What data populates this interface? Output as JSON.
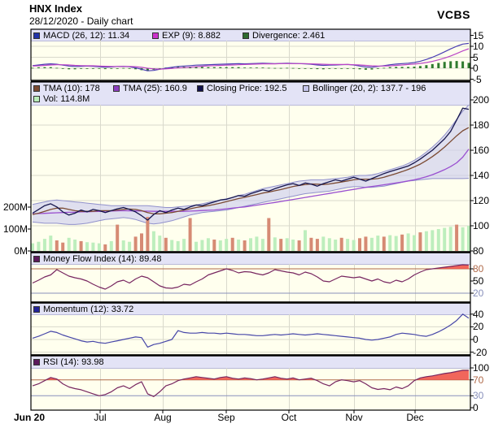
{
  "header": {
    "title": "HNX Index",
    "subtitle": "28/12/2020 - Daily chart",
    "brand": "VCBS"
  },
  "colors": {
    "panel_bg": "#ffffee",
    "strip_bg": "#e3e3f6",
    "strip_edge": "#b9b9d9",
    "grid": "#d9d9cc",
    "border": "#000000",
    "close": "#16164e",
    "tma10": "#7b4a32",
    "tma25": "#9a4fd0",
    "boll_fill": "#c9c9ee",
    "boll_edge": "#9090cc",
    "vol_up": "#bdeebd",
    "vol_down": "#d68a74",
    "macd": "#4b3fb4",
    "exp": "#bb46c6",
    "divergence": "#2f7b2f",
    "mfi": "#772660",
    "momentum": "#4646a8",
    "rsi": "#772660",
    "overbought": "#b06a4a",
    "oversold": "#8890bb",
    "fill_red": "#f0554a"
  },
  "chart_data": {
    "type": "line",
    "title": "HNX Index",
    "x_range": "Jun 2020 - Dec 2020 (daily)",
    "x_axis": {
      "labels": [
        "Jun 20",
        "Jul",
        "Aug",
        "Sep",
        "Oct",
        "Nov",
        "Dec"
      ]
    },
    "panels": {
      "macd": {
        "legend": [
          {
            "label": "MACD (26, 12): 11.34",
            "swatch": "#2233aa"
          },
          {
            "label": "EXP (9): 8.882",
            "swatch": "#cc33cc"
          },
          {
            "label": "Divergence: 2.461",
            "swatch": "#2f6b2f"
          }
        ],
        "yticks": [
          {
            "t": "15",
            "v": 15
          },
          {
            "t": "10",
            "v": 10
          },
          {
            "t": "5",
            "v": 5
          },
          {
            "t": "0",
            "v": 0
          },
          {
            "t": "-5",
            "v": -5
          }
        ]
      },
      "main": {
        "legend_row1": [
          {
            "label": "TMA (10): 178",
            "swatch": "#7b4a32"
          },
          {
            "label": "TMA (25): 160.9",
            "swatch": "#8d3fc0"
          },
          {
            "label": "Closing Price: 192.5",
            "swatch": "#10104a"
          },
          {
            "label": "Bollinger (20, 2): 137.7 - 196",
            "swatch": "#c3c3ea"
          }
        ],
        "legend_row2": [
          {
            "label": "Vol: 114.8M",
            "swatch": "#b9ecb9"
          }
        ],
        "ylim": [
          80,
          200
        ],
        "yticks_right": [
          {
            "t": "200",
            "v": 200
          },
          {
            "t": "180",
            "v": 180
          },
          {
            "t": "160",
            "v": 160
          },
          {
            "t": "140",
            "v": 140
          },
          {
            "t": "120",
            "v": 120
          },
          {
            "t": "100",
            "v": 100
          },
          {
            "t": "80",
            "v": 80
          }
        ],
        "yticks_left": [
          {
            "t": "200M",
            "v": 200
          },
          {
            "t": "100M",
            "v": 100
          },
          {
            "t": "0M",
            "v": 0
          }
        ]
      },
      "mfi": {
        "legend": [
          {
            "label": "Money Flow Index (14): 89.48",
            "swatch": "#5c1a5c"
          }
        ],
        "yticks": [
          {
            "t": "80",
            "v": 80,
            "c": "#b06a4a"
          },
          {
            "t": "50",
            "v": 50
          },
          {
            "t": "20",
            "v": 20,
            "c": "#8890bb"
          }
        ],
        "ref_high": 80,
        "ref_low": 20
      },
      "momentum": {
        "legend": [
          {
            "label": "Momentum (12): 33.72",
            "swatch": "#22229a"
          }
        ],
        "yticks": [
          {
            "t": "40",
            "v": 40
          },
          {
            "t": "20",
            "v": 20
          },
          {
            "t": "0",
            "v": 0
          },
          {
            "t": "-20",
            "v": -20
          }
        ]
      },
      "rsi": {
        "legend": [
          {
            "label": "RSI (14): 93.98",
            "swatch": "#5c1a5c"
          }
        ],
        "yticks": [
          {
            "t": "100",
            "v": 100
          },
          {
            "t": "70",
            "v": 70,
            "c": "#b06a4a"
          },
          {
            "t": "30",
            "v": 30,
            "c": "#8890bb"
          },
          {
            "t": "0",
            "v": 0
          }
        ],
        "ref_high": 70,
        "ref_low": 30
      }
    },
    "series": {
      "close": [
        110,
        113,
        116,
        117.5,
        115,
        111,
        108.5,
        110,
        112.5,
        111,
        113,
        112,
        110.5,
        112,
        113.5,
        114.5,
        113,
        111,
        108,
        104.5,
        109,
        112,
        110.5,
        112.5,
        114,
        113,
        115,
        116.5,
        116,
        117.5,
        119,
        120.5,
        121,
        122.5,
        124,
        123.5,
        125.5,
        127,
        128.5,
        127.5,
        129.5,
        131,
        132.5,
        133.5,
        132,
        134,
        133,
        131.5,
        133.5,
        135,
        136.5,
        135.5,
        137,
        138.5,
        137,
        135.5,
        137.5,
        139.5,
        141.5,
        143,
        144.5,
        146,
        147.5,
        150,
        153,
        156.5,
        160,
        164.5,
        169,
        175,
        184,
        193.5,
        192.5
      ],
      "tma10": [
        109,
        110,
        111.5,
        113,
        114,
        114,
        113,
        112,
        111.5,
        111.5,
        111.5,
        112,
        112,
        112,
        112.5,
        113,
        113.3,
        113,
        112,
        110.5,
        109.5,
        109.5,
        110,
        110.5,
        111.5,
        112.5,
        113.5,
        114.5,
        115.3,
        116,
        117,
        118,
        119.2,
        120.4,
        121.6,
        122.6,
        123.7,
        124.8,
        126,
        126.8,
        127.8,
        128.8,
        130,
        131.2,
        132,
        132.8,
        133.2,
        133,
        132.8,
        133.2,
        134,
        134.8,
        135.6,
        136.5,
        137,
        137,
        137,
        137.5,
        138.5,
        140,
        141.5,
        143,
        144.8,
        146.8,
        149,
        151.8,
        155,
        158.5,
        162.5,
        167,
        171.5,
        175.5,
        178
      ],
      "tma25": [
        109.5,
        109.7,
        109.9,
        110.1,
        110.3,
        110.5,
        110.7,
        110.8,
        111,
        111.1,
        111.3,
        111.4,
        111.6,
        111.7,
        111.9,
        112,
        111.9,
        111.8,
        111.7,
        111.6,
        111.5,
        111.5,
        111.5,
        111.5,
        111.5,
        111.5,
        111.7,
        111.9,
        112.1,
        112.3,
        112.5,
        113,
        113.5,
        114,
        114.5,
        115,
        115.7,
        116.4,
        117.1,
        117.8,
        118.5,
        119.3,
        120.1,
        120.9,
        121.7,
        122.5,
        123.3,
        124.1,
        124.9,
        125.7,
        126.5,
        127.3,
        128.1,
        128.9,
        129.7,
        130.5,
        131.2,
        131.9,
        132.6,
        133.3,
        134,
        134.8,
        135.6,
        136.5,
        137.7,
        139,
        140.6,
        142.5,
        144.6,
        147,
        150,
        154.5,
        160.9
      ],
      "boll_up": [
        117,
        118,
        119,
        120,
        120.5,
        120,
        119.5,
        119,
        118.5,
        118,
        117.5,
        117,
        116.5,
        116,
        116,
        116,
        116,
        116,
        116,
        116,
        115.5,
        115,
        114.5,
        114.5,
        115,
        115.5,
        116,
        116.5,
        117.5,
        118.5,
        119.5,
        120.5,
        121.5,
        122.5,
        124,
        125,
        126.5,
        128,
        129.5,
        130.5,
        131.5,
        132.5,
        133.5,
        134.5,
        135.5,
        136,
        136.5,
        136.5,
        136.5,
        137,
        137.5,
        138,
        138.5,
        139.5,
        140,
        140,
        140.5,
        141.5,
        143,
        144.5,
        146,
        147.5,
        149.5,
        152,
        155,
        158.5,
        162.5,
        167,
        172,
        178,
        184.5,
        191,
        196
      ],
      "boll_lo": [
        103,
        102.5,
        102,
        102,
        102,
        101.5,
        101,
        101,
        101.5,
        102,
        103,
        104,
        105,
        105.5,
        106,
        106.5,
        106,
        105,
        103.5,
        102,
        101.5,
        102,
        103,
        104,
        105.5,
        107,
        108.5,
        109.5,
        110.5,
        111,
        111.5,
        112,
        112.5,
        113.5,
        114.5,
        115.5,
        116.5,
        117.5,
        118.5,
        119.5,
        120.5,
        121.5,
        122.5,
        123.5,
        124.5,
        125.5,
        126,
        126.5,
        127,
        127.5,
        128.5,
        129.5,
        130.5,
        131,
        131,
        130.5,
        130.5,
        131,
        131.5,
        132.5,
        133.5,
        134.5,
        135.5,
        136,
        136.5,
        137,
        137.5,
        137.5,
        137.5,
        137.5,
        137.5,
        137.5,
        137.7
      ],
      "volume": [
        35,
        42,
        55,
        70,
        48,
        38,
        60,
        52,
        45,
        40,
        38,
        35,
        30,
        45,
        120,
        48,
        42,
        65,
        80,
        155,
        90,
        70,
        60,
        50,
        45,
        55,
        150,
        42,
        50,
        58,
        52,
        48,
        55,
        60,
        52,
        48,
        58,
        65,
        55,
        150,
        62,
        55,
        58,
        52,
        48,
        95,
        60,
        55,
        65,
        58,
        52,
        60,
        55,
        50,
        58,
        65,
        60,
        70,
        65,
        72,
        68,
        75,
        80,
        72,
        85,
        90,
        95,
        100,
        105,
        110,
        120,
        108,
        114.8
      ],
      "volume_up": [
        1,
        1,
        1,
        1,
        0,
        0,
        1,
        1,
        0,
        1,
        1,
        1,
        0,
        1,
        0,
        1,
        1,
        0,
        0,
        0,
        1,
        1,
        0,
        1,
        1,
        1,
        0,
        1,
        1,
        1,
        0,
        1,
        1,
        0,
        1,
        0,
        1,
        1,
        1,
        0,
        1,
        0,
        1,
        1,
        0,
        1,
        0,
        0,
        1,
        1,
        1,
        0,
        1,
        1,
        0,
        0,
        1,
        1,
        0,
        1,
        1,
        0,
        1,
        1,
        0,
        1,
        1,
        1,
        1,
        1,
        0,
        1,
        1
      ],
      "macd": [
        1.2,
        1.5,
        1.8,
        2,
        1.8,
        1.4,
        1,
        0.8,
        0.9,
        1,
        0.9,
        0.7,
        0.5,
        0.6,
        0.8,
        0.9,
        0.7,
        0.2,
        -0.5,
        -1.2,
        -1,
        -0.5,
        0,
        0.4,
        0.8,
        1,
        1.2,
        1.4,
        1.5,
        1.6,
        1.7,
        1.8,
        1.9,
        2,
        2.1,
        2,
        2.1,
        2.2,
        2.3,
        2.2,
        2.1,
        2.2,
        2.3,
        2.2,
        2.1,
        2,
        1.8,
        1.5,
        1.3,
        1.4,
        1.5,
        1.6,
        1.7,
        1.5,
        1,
        0.6,
        0.5,
        0.8,
        1.2,
        1.6,
        1.9,
        2.1,
        2.3,
        2.6,
        3.2,
        4,
        5,
        6.2,
        7.5,
        8.8,
        10,
        11,
        11.34
      ],
      "exp": [
        1,
        1.1,
        1.3,
        1.5,
        1.6,
        1.6,
        1.5,
        1.3,
        1.2,
        1.1,
        1.1,
        1,
        0.9,
        0.8,
        0.8,
        0.8,
        0.8,
        0.7,
        0.4,
        0,
        -0.3,
        -0.4,
        -0.3,
        -0.1,
        0.1,
        0.3,
        0.5,
        0.7,
        0.9,
        1.1,
        1.2,
        1.3,
        1.4,
        1.5,
        1.6,
        1.7,
        1.8,
        1.9,
        2,
        2,
        2,
        2.1,
        2.1,
        2.1,
        2.1,
        2.1,
        2,
        1.9,
        1.8,
        1.7,
        1.7,
        1.7,
        1.7,
        1.6,
        1.5,
        1.3,
        1.1,
        1,
        1,
        1.1,
        1.3,
        1.5,
        1.7,
        1.9,
        2.2,
        2.6,
        3.1,
        3.8,
        4.6,
        5.6,
        6.7,
        7.9,
        8.88
      ],
      "divergence": [
        0.2,
        0.4,
        0.5,
        0.5,
        0.2,
        -0.2,
        -0.5,
        -0.5,
        -0.3,
        -0.1,
        -0.2,
        -0.3,
        -0.4,
        -0.2,
        0,
        0.1,
        -0.1,
        -0.5,
        -0.9,
        -1.2,
        -0.7,
        -0.1,
        0.3,
        0.5,
        0.7,
        0.7,
        0.7,
        0.7,
        0.6,
        0.5,
        0.5,
        0.5,
        0.5,
        0.5,
        0.5,
        0.3,
        0.3,
        0.3,
        0.3,
        0.2,
        0.1,
        0.1,
        0.2,
        0.1,
        0,
        -0.1,
        -0.2,
        -0.4,
        -0.5,
        -0.3,
        -0.2,
        -0.1,
        0,
        -0.1,
        -0.5,
        -0.7,
        -0.6,
        -0.2,
        0.2,
        0.5,
        0.6,
        0.6,
        0.6,
        0.7,
        1,
        1.4,
        1.9,
        2.4,
        2.9,
        3.2,
        3.3,
        3.1,
        2.46
      ],
      "mfi": [
        45,
        52,
        60,
        65,
        78,
        70,
        62,
        58,
        55,
        50,
        42,
        35,
        30,
        38,
        48,
        52,
        45,
        55,
        62,
        58,
        48,
        38,
        33,
        32,
        35,
        42,
        40,
        48,
        55,
        65,
        70,
        75,
        80,
        76,
        70,
        73,
        72,
        68,
        65,
        70,
        78,
        75,
        72,
        70,
        65,
        72,
        68,
        60,
        50,
        48,
        55,
        62,
        60,
        58,
        60,
        55,
        50,
        55,
        48,
        45,
        52,
        48,
        55,
        65,
        72,
        78,
        80,
        82,
        84,
        86,
        88,
        90,
        89.48
      ],
      "momentum": [
        2,
        5,
        9,
        13,
        11,
        7,
        4,
        1,
        -2,
        -4,
        -3,
        -5,
        -6,
        -4,
        -2,
        0,
        2,
        4,
        3,
        -12,
        -8,
        -6,
        -3,
        0,
        14,
        11,
        10,
        10,
        11,
        10,
        10,
        9,
        10,
        9,
        8,
        8,
        7,
        6,
        6,
        7,
        8,
        7,
        8,
        9,
        8,
        7,
        8,
        9,
        8,
        7,
        6,
        5,
        4,
        3,
        2,
        0,
        -1,
        0,
        2,
        4,
        8,
        10,
        9,
        8,
        6,
        5,
        8,
        12,
        17,
        23,
        30,
        40,
        33.72
      ],
      "rsi": [
        55,
        60,
        68,
        76,
        72,
        60,
        52,
        48,
        45,
        40,
        35,
        30,
        33,
        40,
        50,
        55,
        48,
        58,
        65,
        35,
        28,
        40,
        55,
        60,
        68,
        72,
        75,
        78,
        76,
        74,
        72,
        76,
        78,
        74,
        72,
        75,
        73,
        70,
        72,
        75,
        78,
        74,
        72,
        75,
        70,
        72,
        74,
        68,
        60,
        55,
        65,
        70,
        68,
        65,
        68,
        60,
        50,
        46,
        48,
        45,
        52,
        48,
        55,
        68,
        75,
        78,
        80,
        83,
        86,
        88,
        91,
        94,
        93.98
      ]
    }
  }
}
